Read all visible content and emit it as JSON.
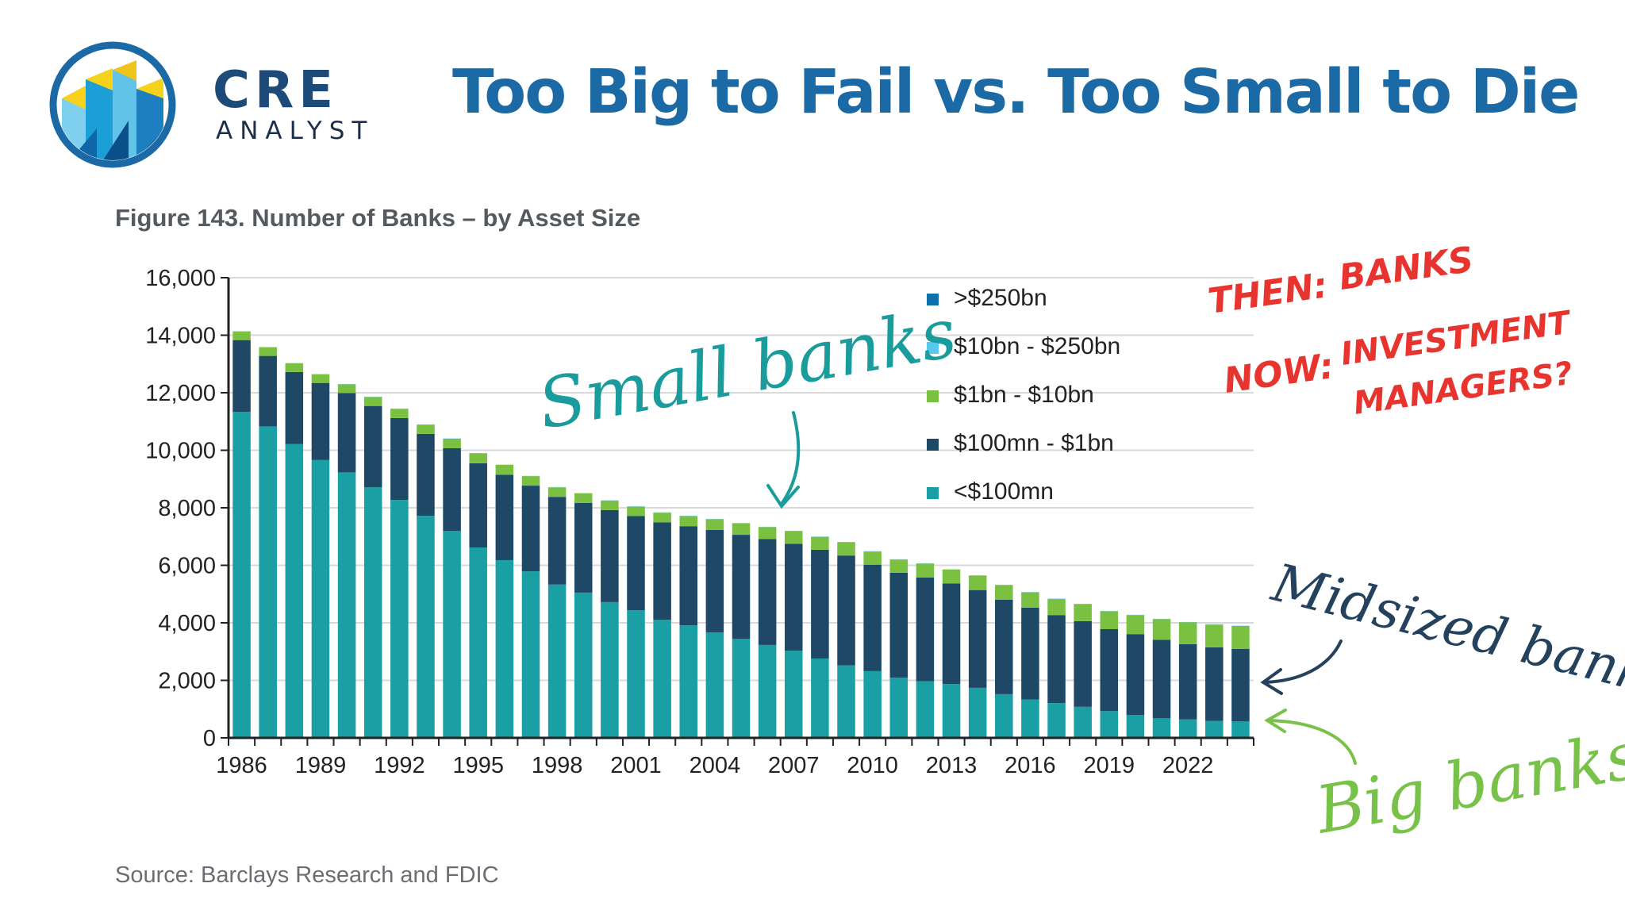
{
  "brand": {
    "name": "CRE",
    "sub": "ANALYST"
  },
  "headline": "Too Big to Fail vs. Too Small to Die",
  "figure_title": "Figure 143. Number of Banks – by Asset Size",
  "source": "Source: Barclays Research and FDIC",
  "colors": {
    "brand_blue": "#1b6aa5",
    "gt250": "#0f6fa8",
    "b10_250": "#59c8ee",
    "b1_10": "#7ac142",
    "m100_1": "#1f4866",
    "lt100": "#1aa0a4",
    "note_red": "#e8342e",
    "note_teal": "#1b9c9c",
    "note_navy": "#24415e",
    "note_green": "#79c24a"
  },
  "annotations": {
    "small_banks": "Small banks",
    "midsized_banks": "Midsized banks",
    "big_banks": "Big banks",
    "then_label": "THEN:",
    "then_value": "BANKS",
    "now_label": "NOW:",
    "now_value_1": "INVESTMENT",
    "now_value_2": "MANAGERS?"
  },
  "chart_data": {
    "type": "bar",
    "stacked": true,
    "title": "Figure 143. Number of Banks – by Asset Size",
    "xlabel": "",
    "ylabel": "",
    "ylim": [
      0,
      16000
    ],
    "yticks": [
      0,
      2000,
      4000,
      6000,
      8000,
      10000,
      12000,
      14000,
      16000
    ],
    "ytick_labels": [
      "0",
      "2,000",
      "4,000",
      "6,000",
      "8,000",
      "10,000",
      "12,000",
      "14,000",
      "16,000"
    ],
    "xtick_labels": [
      "1986",
      "1989",
      "1992",
      "1995",
      "1998",
      "2001",
      "2004",
      "2007",
      "2010",
      "2013",
      "2016",
      "2019",
      "2022"
    ],
    "grid": "horizontal",
    "legend_position": "top-right",
    "categories": [
      "1986",
      "1987",
      "1988",
      "1989",
      "1990",
      "1991",
      "1992",
      "1993",
      "1994",
      "1995",
      "1996",
      "1997",
      "1998",
      "1999",
      "2000",
      "2001",
      "2002",
      "2003",
      "2004",
      "2005",
      "2006",
      "2007",
      "2008",
      "2009",
      "2010",
      "2011",
      "2012",
      "2013",
      "2014",
      "2015",
      "2016",
      "2017",
      "2018",
      "2019",
      "2020",
      "2021",
      "2022",
      "2023",
      "2024"
    ],
    "series": [
      {
        "name": ">$250bn",
        "color": "#0f6fa8",
        "values": [
          0,
          0,
          0,
          0,
          0,
          0,
          0,
          0,
          0,
          0,
          0,
          0,
          0,
          0,
          0,
          0,
          0,
          0,
          0,
          0,
          0,
          0,
          0,
          0,
          0,
          0,
          0,
          0,
          0,
          0,
          0,
          0,
          0,
          0,
          0,
          0,
          0,
          0,
          0
        ]
      },
      {
        "name": "$10bn - $250bn",
        "color": "#59c8ee",
        "values": [
          10,
          10,
          10,
          10,
          10,
          10,
          10,
          10,
          10,
          10,
          10,
          10,
          10,
          10,
          10,
          10,
          10,
          10,
          10,
          10,
          10,
          10,
          10,
          10,
          10,
          10,
          10,
          10,
          10,
          10,
          10,
          10,
          10,
          10,
          10,
          10,
          10,
          10,
          10
        ]
      },
      {
        "name": "$1bn - $10bn",
        "color": "#7ac142",
        "values": [
          300,
          300,
          300,
          300,
          300,
          310,
          320,
          320,
          330,
          340,
          340,
          330,
          330,
          330,
          330,
          330,
          340,
          350,
          370,
          400,
          420,
          440,
          450,
          460,
          460,
          460,
          480,
          480,
          500,
          510,
          530,
          560,
          590,
          620,
          670,
          720,
          760,
          790,
          800
        ]
      },
      {
        "name": "$100mn - $1bn",
        "color": "#1f4866",
        "values": [
          2500,
          2450,
          2500,
          2680,
          2760,
          2830,
          2850,
          2850,
          2870,
          2930,
          2970,
          2980,
          3050,
          3120,
          3200,
          3270,
          3380,
          3450,
          3560,
          3620,
          3680,
          3720,
          3780,
          3820,
          3700,
          3650,
          3610,
          3500,
          3400,
          3280,
          3200,
          3060,
          2980,
          2850,
          2800,
          2730,
          2620,
          2560,
          2520
        ]
      },
      {
        "name": "<$100mn",
        "color": "#1aa0a4",
        "values": [
          11330,
          10830,
          10220,
          9660,
          9230,
          8710,
          8270,
          7720,
          7200,
          6620,
          6180,
          5790,
          5330,
          5050,
          4720,
          4440,
          4110,
          3910,
          3670,
          3440,
          3230,
          3030,
          2760,
          2520,
          2320,
          2090,
          1970,
          1870,
          1740,
          1520,
          1330,
          1210,
          1080,
          930,
          800,
          680,
          640,
          590,
          570
        ]
      }
    ]
  }
}
